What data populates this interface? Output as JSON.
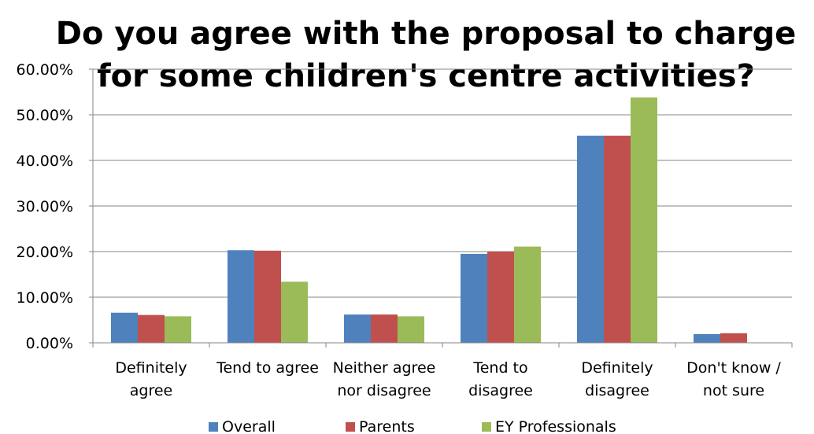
{
  "chart_data": {
    "type": "bar",
    "title_lines": [
      "Do you agree with the proposal to charge",
      "for some children's centre activities?"
    ],
    "categories": [
      [
        "Definitely",
        "agree"
      ],
      [
        "Tend to agree"
      ],
      [
        "Neither agree",
        "nor disagree"
      ],
      [
        "Tend to",
        "disagree"
      ],
      [
        "Definitely",
        "disagree"
      ],
      [
        "Don't know /",
        "not sure"
      ]
    ],
    "series": [
      {
        "name": "Overall",
        "color": "#4F81BD",
        "values": [
          6.6,
          20.3,
          6.2,
          19.5,
          45.4,
          1.9
        ]
      },
      {
        "name": "Parents",
        "color": "#C0504D",
        "values": [
          6.1,
          20.2,
          6.2,
          20.0,
          45.4,
          2.1
        ]
      },
      {
        "name": "EY Professionals",
        "color": "#9BBB59",
        "values": [
          5.8,
          13.4,
          5.8,
          21.1,
          53.8,
          0
        ]
      }
    ],
    "ylim": [
      0,
      60
    ],
    "yticks": [
      "0.00%",
      "10.00%",
      "20.00%",
      "30.00%",
      "40.00%",
      "50.00%",
      "60.00%"
    ],
    "grid": true,
    "legend": "bottom"
  }
}
